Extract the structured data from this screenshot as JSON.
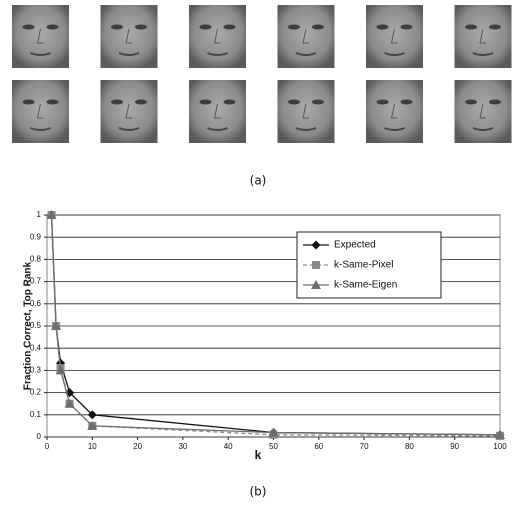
{
  "panel_labels": [
    "(a)",
    "(b)"
  ],
  "chart_data": {
    "type": "line",
    "x_label": "k",
    "y_label": "Fraction Correct, Top Rank",
    "x": [
      1,
      2,
      3,
      5,
      10,
      50,
      100
    ],
    "series": [
      {
        "name": "Expected",
        "color": "#111111",
        "marker": "diamond",
        "linestyle": "solid",
        "values": [
          1,
          0.5,
          0.333,
          0.2,
          0.1,
          0.02,
          0.01
        ]
      },
      {
        "name": "k-Same-Pixel",
        "color": "#8a8a8a",
        "marker": "square",
        "linestyle": "dashed",
        "values": [
          1,
          0.5,
          0.31,
          0.15,
          0.05,
          0.01,
          0.005
        ]
      },
      {
        "name": "k-Same-Eigen",
        "color": "#6e6e6e",
        "marker": "triangle",
        "linestyle": "solid",
        "values": [
          1,
          0.5,
          0.3,
          0.15,
          0.05,
          0.02,
          0.01
        ]
      }
    ],
    "xlim": [
      0,
      100
    ],
    "xticks": [
      0,
      10,
      20,
      30,
      40,
      50,
      60,
      70,
      80,
      90,
      100
    ],
    "ylim": [
      0,
      1
    ],
    "yticks": [
      0,
      0.1,
      0.2,
      0.3,
      0.4,
      0.5,
      0.6,
      0.7,
      0.8,
      0.9,
      1
    ],
    "grid": true,
    "legend": "upper right"
  }
}
